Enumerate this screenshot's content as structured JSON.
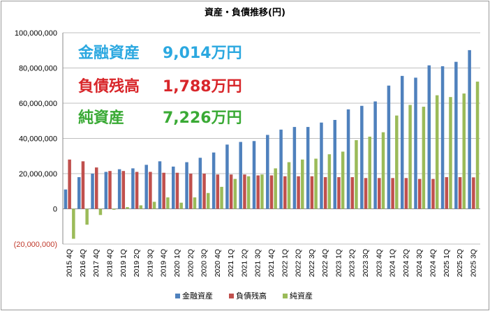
{
  "chart_data": {
    "type": "bar",
    "title": "資産・負債推移(円)",
    "ylim": [
      -20000000,
      100000000
    ],
    "yticks": [
      {
        "value": 100000000,
        "label": "100,000,000"
      },
      {
        "value": 80000000,
        "label": "80,000,000"
      },
      {
        "value": 60000000,
        "label": "60,000,000"
      },
      {
        "value": 40000000,
        "label": "40,000,000"
      },
      {
        "value": 20000000,
        "label": "20,000,000"
      },
      {
        "value": 0,
        "label": "0"
      },
      {
        "value": -20000000,
        "label": "(20,000,000)"
      }
    ],
    "categories": [
      "2015 4Q",
      "2016 4Q",
      "2017 4Q",
      "2018 4Q",
      "2019 1Q",
      "2019 2Q",
      "2019 3Q",
      "2019 4Q",
      "2020 1Q",
      "2020 2Q",
      "2020 3Q",
      "2020 4Q",
      "2021 1Q",
      "2021 2Q",
      "2021 3Q",
      "2021 4Q",
      "2022 1Q",
      "2022 2Q",
      "2022 3Q",
      "2022 4Q",
      "2023 1Q",
      "2023 2Q",
      "2023 3Q",
      "2023 4Q",
      "2024 1Q",
      "2024 2Q",
      "2024 3Q",
      "2024 4Q",
      "2025 1Q",
      "2025 2Q",
      "2025 3Q"
    ],
    "series": [
      {
        "name": "金融資産",
        "color": "#4f81bd",
        "values": [
          11000000,
          18000000,
          20000000,
          21000000,
          22500000,
          23000000,
          25000000,
          27000000,
          24000000,
          26500000,
          29000000,
          32000000,
          36500000,
          38000000,
          38500000,
          42000000,
          45000000,
          46500000,
          46500000,
          49000000,
          50500000,
          56500000,
          58500000,
          61000000,
          70000000,
          75500000,
          74500000,
          81500000,
          81000000,
          83500000,
          90140000
        ]
      },
      {
        "name": "負債残高",
        "color": "#c0504d",
        "values": [
          28000000,
          27000000,
          23500000,
          21500000,
          21500000,
          21000000,
          21000000,
          20500000,
          20500000,
          20000000,
          20000000,
          19500000,
          19500000,
          19500000,
          19000000,
          19000000,
          18500000,
          18500000,
          18500000,
          18000000,
          18000000,
          18000000,
          17500000,
          17500000,
          17500000,
          17500000,
          17000000,
          17000000,
          18000000,
          18000000,
          17880000
        ]
      },
      {
        "name": "純資産",
        "color": "#9bbb59",
        "values": [
          -17000000,
          -9000000,
          -3500000,
          -500000,
          1000000,
          2000000,
          4000000,
          6500000,
          3500000,
          6500000,
          9000000,
          12500000,
          17000000,
          18500000,
          19500000,
          23000000,
          26500000,
          28000000,
          28500000,
          31000000,
          32500000,
          39000000,
          41000000,
          43500000,
          53000000,
          59000000,
          58000000,
          64500000,
          63500000,
          65500000,
          72260000
        ]
      }
    ],
    "legend_position": "bottom",
    "grid": true
  },
  "annotations": [
    {
      "label": "金融資産",
      "value": "9,014万円",
      "color": "#2ba8e0"
    },
    {
      "label": "負債残高",
      "value": "1,788万円",
      "color": "#d8262a"
    },
    {
      "label": "純資産",
      "value": "7,226万円",
      "color": "#3aaa35"
    }
  ]
}
